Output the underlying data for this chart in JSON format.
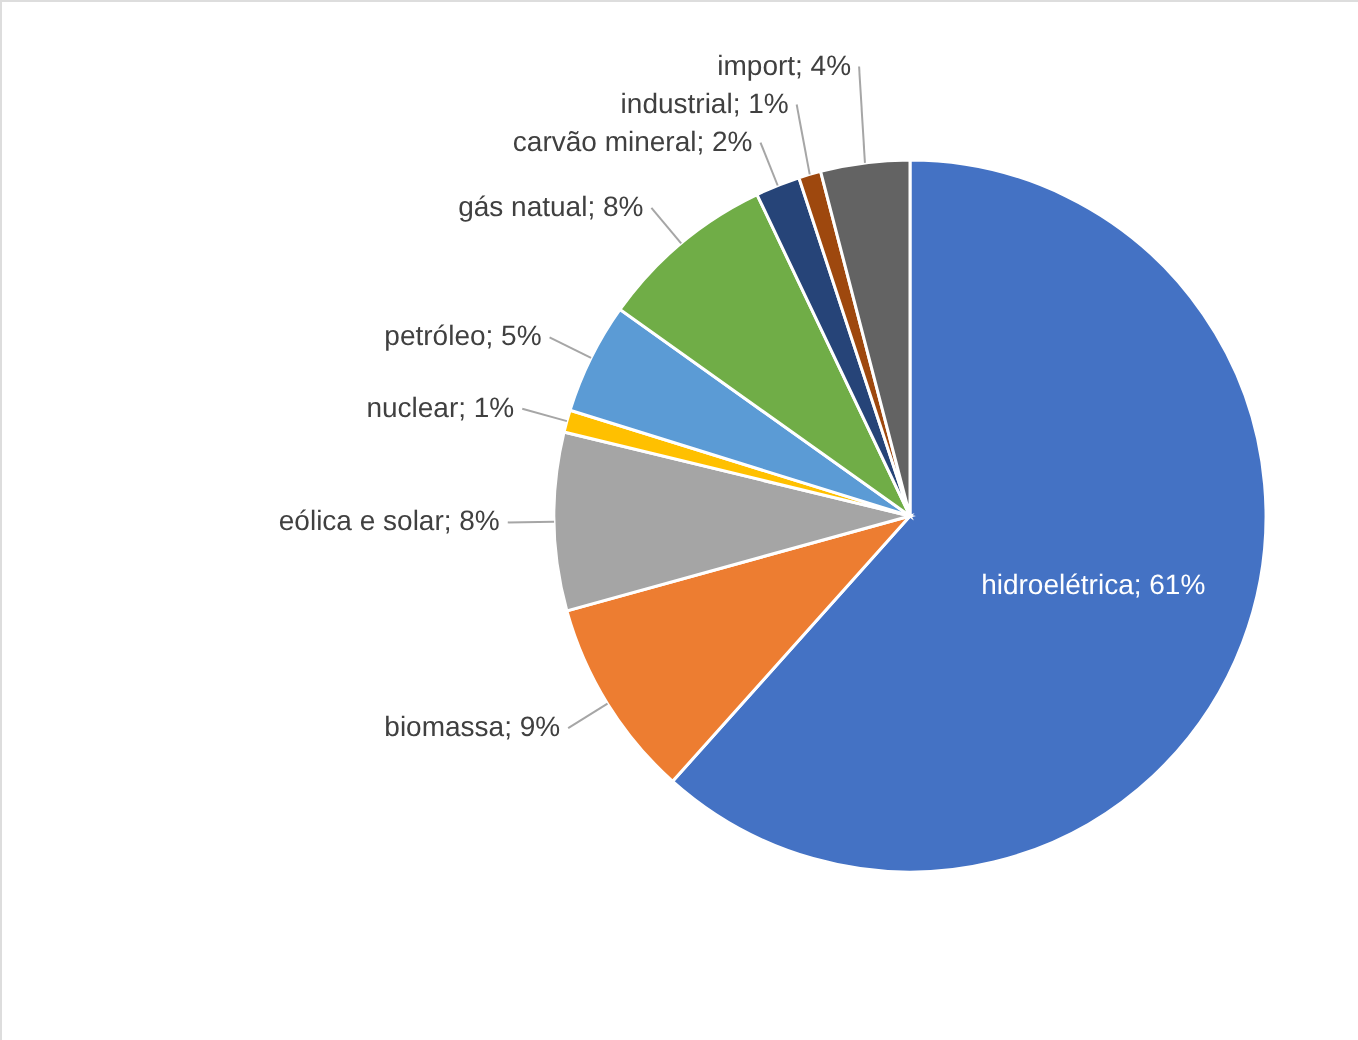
{
  "chart_data": {
    "type": "pie",
    "categories": [
      "hidroelétrica",
      "biomassa",
      "eólica e solar",
      "nuclear",
      "petróleo",
      "gás natual",
      "carvão mineral",
      "industrial",
      "import"
    ],
    "values": [
      61,
      9,
      8,
      1,
      5,
      8,
      2,
      1,
      4
    ],
    "colors": [
      "#4472c4",
      "#ed7d31",
      "#a5a5a5",
      "#ffc000",
      "#5b9bd5",
      "#70ad47",
      "#264478",
      "#9e480e",
      "#636363"
    ],
    "value_labels": [
      "; 61%",
      "; 9%",
      "; 8%",
      "; 1%",
      "; 5%",
      "; 8%",
      "; 2%",
      "; 1%",
      "; 4%"
    ]
  }
}
